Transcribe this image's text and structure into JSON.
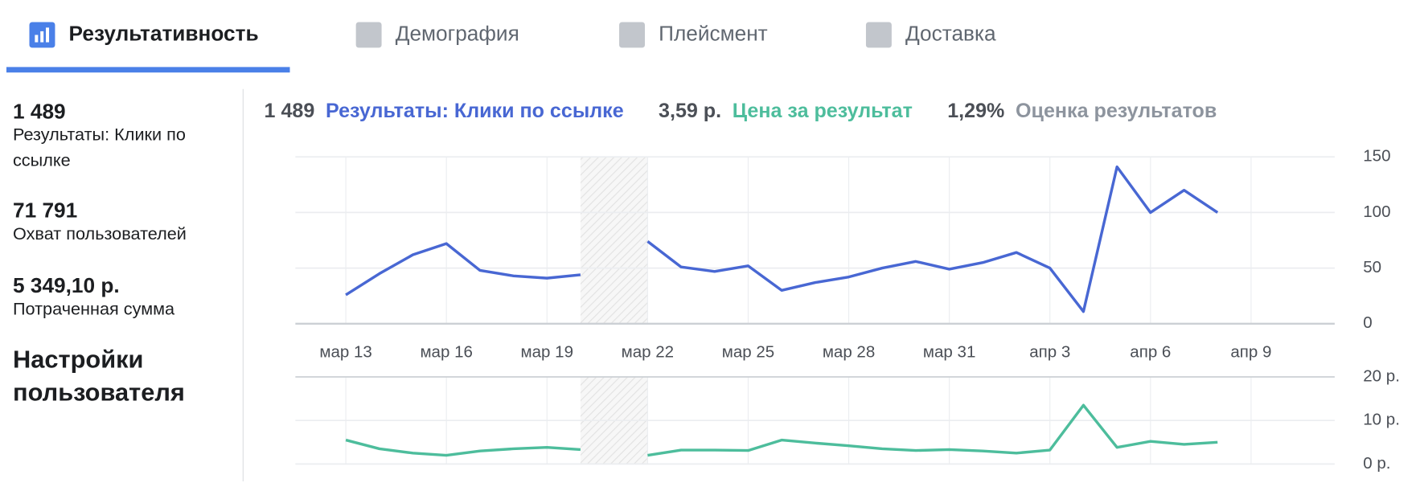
{
  "tabs": [
    {
      "label": "Результативность",
      "active": true
    },
    {
      "label": "Демография",
      "active": false
    },
    {
      "label": "Плейсмент",
      "active": false
    },
    {
      "label": "Доставка",
      "active": false
    }
  ],
  "summary": [
    {
      "value": "1 489",
      "label": "Результаты: Клики по ссылке"
    },
    {
      "value": "71 791",
      "label": "Охват пользователей"
    },
    {
      "value": "5 349,10 р.",
      "label": "Потраченная сумма"
    }
  ],
  "settings_title": "Настройки пользователя",
  "metrics": [
    {
      "value": "1 489",
      "label": "Результаты: Клики по ссылке",
      "color": "#4867d3"
    },
    {
      "value": "3,59 р.",
      "label": "Цена за результат",
      "color": "#4dbd9c"
    },
    {
      "value": "1,29%",
      "label": "Оценка результатов",
      "color": "#8d949e"
    }
  ],
  "chart_data": [
    {
      "type": "line",
      "categories": [
        "мар 13",
        null,
        null,
        "мар 16",
        null,
        null,
        "мар 19",
        null,
        null,
        "мар 22",
        null,
        null,
        "мар 25",
        null,
        null,
        "мар 28",
        null,
        null,
        "мар 31",
        null,
        null,
        "апр 3",
        null,
        null,
        "апр 6",
        null,
        null,
        "апр 9"
      ],
      "series": [
        {
          "color": "#4867d3",
          "values": [
            26,
            45,
            62,
            72,
            48,
            43,
            41,
            44,
            null,
            74,
            51,
            47,
            52,
            30,
            37,
            42,
            50,
            56,
            49,
            55,
            64,
            50,
            11,
            141,
            100,
            120,
            100,
            null
          ]
        }
      ],
      "ylim": [
        0,
        150
      ],
      "yticks": [
        0,
        50,
        100,
        150
      ],
      "grid": true
    },
    {
      "type": "line",
      "categories": [
        "мар 13",
        null,
        null,
        "мар 16",
        null,
        null,
        "мар 19",
        null,
        null,
        "мар 22",
        null,
        null,
        "мар 25",
        null,
        null,
        "мар 28",
        null,
        null,
        "мар 31",
        null,
        null,
        "апр 3",
        null,
        null,
        "апр 6",
        null,
        null,
        "апр 9"
      ],
      "series": [
        {
          "color": "#4dbd9c",
          "values": [
            5.5,
            3.5,
            2.5,
            2,
            3,
            3.5,
            3.8,
            3.3,
            null,
            2,
            3.2,
            3.2,
            3.1,
            5.5,
            4.8,
            4.2,
            3.5,
            3.1,
            3.3,
            3,
            2.5,
            3.2,
            13.5,
            3.8,
            5.2,
            4.5,
            5,
            null
          ]
        }
      ],
      "ylim": [
        0,
        20
      ],
      "yticks": [
        {
          "value": 0,
          "label": "0 р."
        },
        {
          "value": 10,
          "label": "10 р."
        },
        {
          "value": 20,
          "label": "20 р."
        }
      ],
      "grid": true
    }
  ]
}
